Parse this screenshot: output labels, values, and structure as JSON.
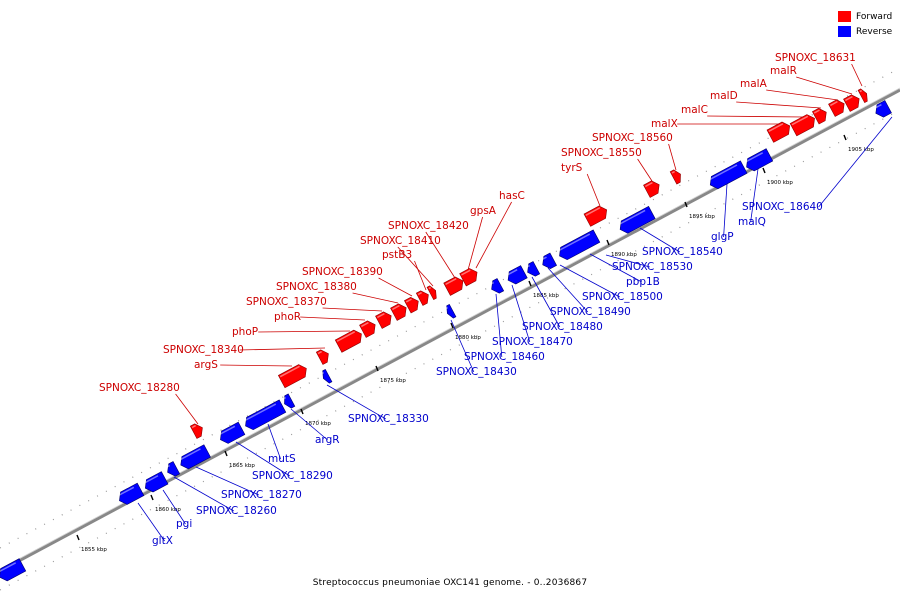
{
  "legend": {
    "forward_label": "Forward",
    "reverse_label": "Reverse",
    "forward_color": "#ff0000",
    "reverse_color": "#0000ff"
  },
  "caption": "Streptococcus pneumoniae OXC141 genome. - 0..2036867",
  "ticks": [
    "1855 kbp",
    "1860 kbp",
    "1865 kbp",
    "1870 kbp",
    "1875 kbp",
    "1880 kbp",
    "1885 kbp",
    "1890 kbp",
    "1895 kbp",
    "1900 kbp",
    "1905 kbp"
  ],
  "forward_genes": [
    "SPNOXC_18280",
    "argS",
    "SPNOXC_18340",
    "phoP",
    "phoR",
    "SPNOXC_18370",
    "SPNOXC_18380",
    "SPNOXC_18390",
    "pstB3",
    "SPNOXC_18410",
    "SPNOXC_18420",
    "gpsA",
    "hasC",
    "tyrS",
    "SPNOXC_18550",
    "SPNOXC_18560",
    "malX",
    "malC",
    "malD",
    "malA",
    "malR",
    "SPNOXC_18631"
  ],
  "reverse_genes": [
    "gltX",
    "pgi",
    "SPNOXC_18260",
    "SPNOXC_18270",
    "SPNOXC_18290",
    "mutS",
    "argR",
    "SPNOXC_18330",
    "SPNOXC_18430",
    "SPNOXC_18460",
    "SPNOXC_18470",
    "SPNOXC_18480",
    "SPNOXC_18490",
    "SPNOXC_18500",
    "pbp1B",
    "SPNOXC_18530",
    "SPNOXC_18540",
    "glgP",
    "malQ",
    "SPNOXC_18640"
  ]
}
